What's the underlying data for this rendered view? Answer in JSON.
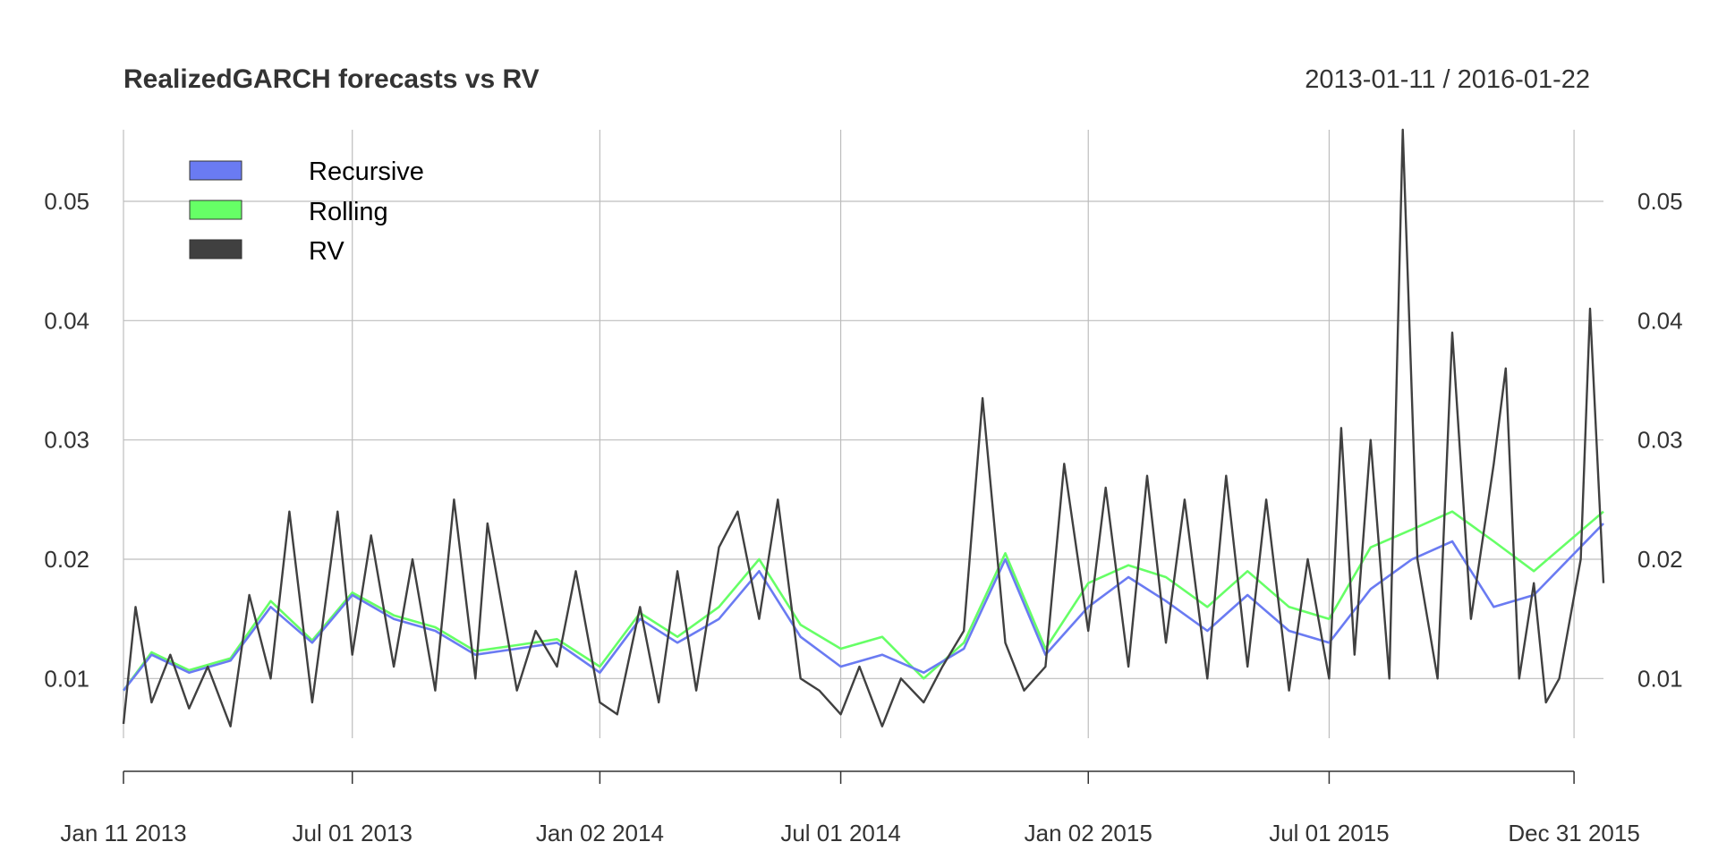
{
  "chart_data": {
    "type": "line",
    "title": "RealizedGARCH forecasts vs RV",
    "date_range_label": "2013-01-11 / 2016-01-22",
    "xlabel": "",
    "ylabel": "",
    "x_range": [
      "2013-01-11",
      "2016-01-22"
    ],
    "ylim": [
      0.005,
      0.056
    ],
    "y_ticks": [
      0.01,
      0.02,
      0.03,
      0.04,
      0.05
    ],
    "y_tick_labels": [
      "0.01",
      "0.02",
      "0.03",
      "0.04",
      "0.05"
    ],
    "x_ticks": [
      {
        "date": "2013-01-11",
        "label": "Jan 11 2013"
      },
      {
        "date": "2013-07-01",
        "label": "Jul 01 2013"
      },
      {
        "date": "2014-01-02",
        "label": "Jan 02 2014"
      },
      {
        "date": "2014-07-01",
        "label": "Jul 01 2014"
      },
      {
        "date": "2015-01-02",
        "label": "Jan 02 2015"
      },
      {
        "date": "2015-07-01",
        "label": "Jul 01 2015"
      },
      {
        "date": "2015-12-31",
        "label": "Dec 31 2015"
      }
    ],
    "grid": true,
    "legend_position": "top-left",
    "series": [
      {
        "name": "Recursive",
        "color": "#6a7bf2",
        "points": [
          [
            "2013-01-11",
            0.009
          ],
          [
            "2013-02-01",
            0.012
          ],
          [
            "2013-03-01",
            0.0105
          ],
          [
            "2013-04-01",
            0.0115
          ],
          [
            "2013-05-01",
            0.016
          ],
          [
            "2013-06-01",
            0.013
          ],
          [
            "2013-07-01",
            0.017
          ],
          [
            "2013-08-01",
            0.015
          ],
          [
            "2013-09-01",
            0.014
          ],
          [
            "2013-10-01",
            0.012
          ],
          [
            "2013-11-01",
            0.0125
          ],
          [
            "2013-12-01",
            0.013
          ],
          [
            "2014-01-02",
            0.0105
          ],
          [
            "2014-02-01",
            0.015
          ],
          [
            "2014-03-01",
            0.013
          ],
          [
            "2014-04-01",
            0.015
          ],
          [
            "2014-05-01",
            0.019
          ],
          [
            "2014-06-01",
            0.0135
          ],
          [
            "2014-07-01",
            0.011
          ],
          [
            "2014-08-01",
            0.012
          ],
          [
            "2014-09-01",
            0.0105
          ],
          [
            "2014-10-01",
            0.0125
          ],
          [
            "2014-11-01",
            0.02
          ],
          [
            "2014-12-01",
            0.012
          ],
          [
            "2015-01-02",
            0.016
          ],
          [
            "2015-02-01",
            0.0185
          ],
          [
            "2015-03-01",
            0.0165
          ],
          [
            "2015-04-01",
            0.014
          ],
          [
            "2015-05-01",
            0.017
          ],
          [
            "2015-06-01",
            0.014
          ],
          [
            "2015-07-01",
            0.013
          ],
          [
            "2015-08-01",
            0.0175
          ],
          [
            "2015-09-01",
            0.02
          ],
          [
            "2015-10-01",
            0.0215
          ],
          [
            "2015-11-01",
            0.016
          ],
          [
            "2015-12-01",
            0.017
          ],
          [
            "2016-01-22",
            0.023
          ]
        ]
      },
      {
        "name": "Rolling",
        "color": "#66ff66",
        "points": [
          [
            "2013-01-11",
            0.009
          ],
          [
            "2013-02-01",
            0.0122
          ],
          [
            "2013-03-01",
            0.0107
          ],
          [
            "2013-04-01",
            0.0117
          ],
          [
            "2013-05-01",
            0.0165
          ],
          [
            "2013-06-01",
            0.0132
          ],
          [
            "2013-07-01",
            0.0172
          ],
          [
            "2013-08-01",
            0.0153
          ],
          [
            "2013-09-01",
            0.0143
          ],
          [
            "2013-10-01",
            0.0123
          ],
          [
            "2013-11-01",
            0.0128
          ],
          [
            "2013-12-01",
            0.0133
          ],
          [
            "2014-01-02",
            0.011
          ],
          [
            "2014-02-01",
            0.0155
          ],
          [
            "2014-03-01",
            0.0135
          ],
          [
            "2014-04-01",
            0.016
          ],
          [
            "2014-05-01",
            0.02
          ],
          [
            "2014-06-01",
            0.0145
          ],
          [
            "2014-07-01",
            0.0125
          ],
          [
            "2014-08-01",
            0.0135
          ],
          [
            "2014-09-01",
            0.01
          ],
          [
            "2014-10-01",
            0.013
          ],
          [
            "2014-11-01",
            0.0205
          ],
          [
            "2014-12-01",
            0.0125
          ],
          [
            "2015-01-02",
            0.018
          ],
          [
            "2015-02-01",
            0.0195
          ],
          [
            "2015-03-01",
            0.0185
          ],
          [
            "2015-04-01",
            0.016
          ],
          [
            "2015-05-01",
            0.019
          ],
          [
            "2015-06-01",
            0.016
          ],
          [
            "2015-07-01",
            0.015
          ],
          [
            "2015-08-01",
            0.021
          ],
          [
            "2015-09-01",
            0.0225
          ],
          [
            "2015-10-01",
            0.024
          ],
          [
            "2015-11-01",
            0.0215
          ],
          [
            "2015-12-01",
            0.019
          ],
          [
            "2016-01-22",
            0.024
          ]
        ]
      },
      {
        "name": "RV",
        "color": "#404040",
        "points": [
          [
            "2013-01-11",
            0.0062
          ],
          [
            "2013-01-20",
            0.016
          ],
          [
            "2013-02-01",
            0.008
          ],
          [
            "2013-02-15",
            0.012
          ],
          [
            "2013-03-01",
            0.0075
          ],
          [
            "2013-03-15",
            0.011
          ],
          [
            "2013-04-01",
            0.006
          ],
          [
            "2013-04-15",
            0.017
          ],
          [
            "2013-05-01",
            0.01
          ],
          [
            "2013-05-15",
            0.024
          ],
          [
            "2013-06-01",
            0.008
          ],
          [
            "2013-06-20",
            0.024
          ],
          [
            "2013-07-01",
            0.012
          ],
          [
            "2013-07-15",
            0.022
          ],
          [
            "2013-08-01",
            0.011
          ],
          [
            "2013-08-15",
            0.02
          ],
          [
            "2013-09-01",
            0.009
          ],
          [
            "2013-09-15",
            0.025
          ],
          [
            "2013-10-01",
            0.01
          ],
          [
            "2013-10-10",
            0.023
          ],
          [
            "2013-11-01",
            0.009
          ],
          [
            "2013-11-15",
            0.014
          ],
          [
            "2013-12-01",
            0.011
          ],
          [
            "2013-12-15",
            0.019
          ],
          [
            "2014-01-02",
            0.008
          ],
          [
            "2014-01-15",
            0.007
          ],
          [
            "2014-02-01",
            0.016
          ],
          [
            "2014-02-15",
            0.008
          ],
          [
            "2014-03-01",
            0.019
          ],
          [
            "2014-03-15",
            0.009
          ],
          [
            "2014-04-01",
            0.021
          ],
          [
            "2014-04-15",
            0.024
          ],
          [
            "2014-05-01",
            0.015
          ],
          [
            "2014-05-15",
            0.025
          ],
          [
            "2014-06-01",
            0.01
          ],
          [
            "2014-06-15",
            0.009
          ],
          [
            "2014-07-01",
            0.007
          ],
          [
            "2014-07-15",
            0.011
          ],
          [
            "2014-08-01",
            0.006
          ],
          [
            "2014-08-15",
            0.01
          ],
          [
            "2014-09-01",
            0.008
          ],
          [
            "2014-09-15",
            0.011
          ],
          [
            "2014-10-01",
            0.014
          ],
          [
            "2014-10-15",
            0.0335
          ],
          [
            "2014-11-01",
            0.013
          ],
          [
            "2014-11-15",
            0.009
          ],
          [
            "2014-12-01",
            0.011
          ],
          [
            "2014-12-15",
            0.028
          ],
          [
            "2015-01-02",
            0.014
          ],
          [
            "2015-01-15",
            0.026
          ],
          [
            "2015-02-01",
            0.011
          ],
          [
            "2015-02-15",
            0.027
          ],
          [
            "2015-03-01",
            0.013
          ],
          [
            "2015-03-15",
            0.025
          ],
          [
            "2015-04-01",
            0.01
          ],
          [
            "2015-04-15",
            0.027
          ],
          [
            "2015-05-01",
            0.011
          ],
          [
            "2015-05-15",
            0.025
          ],
          [
            "2015-06-01",
            0.009
          ],
          [
            "2015-06-15",
            0.02
          ],
          [
            "2015-07-01",
            0.01
          ],
          [
            "2015-07-10",
            0.031
          ],
          [
            "2015-07-20",
            0.012
          ],
          [
            "2015-08-01",
            0.03
          ],
          [
            "2015-08-15",
            0.01
          ],
          [
            "2015-08-25",
            0.056
          ],
          [
            "2015-09-05",
            0.02
          ],
          [
            "2015-09-20",
            0.01
          ],
          [
            "2015-10-01",
            0.039
          ],
          [
            "2015-10-15",
            0.015
          ],
          [
            "2015-11-01",
            0.028
          ],
          [
            "2015-11-10",
            0.036
          ],
          [
            "2015-11-20",
            0.01
          ],
          [
            "2015-12-01",
            0.018
          ],
          [
            "2015-12-10",
            0.008
          ],
          [
            "2015-12-20",
            0.01
          ],
          [
            "2016-01-05",
            0.02
          ],
          [
            "2016-01-12",
            0.041
          ],
          [
            "2016-01-22",
            0.018
          ]
        ]
      }
    ]
  }
}
